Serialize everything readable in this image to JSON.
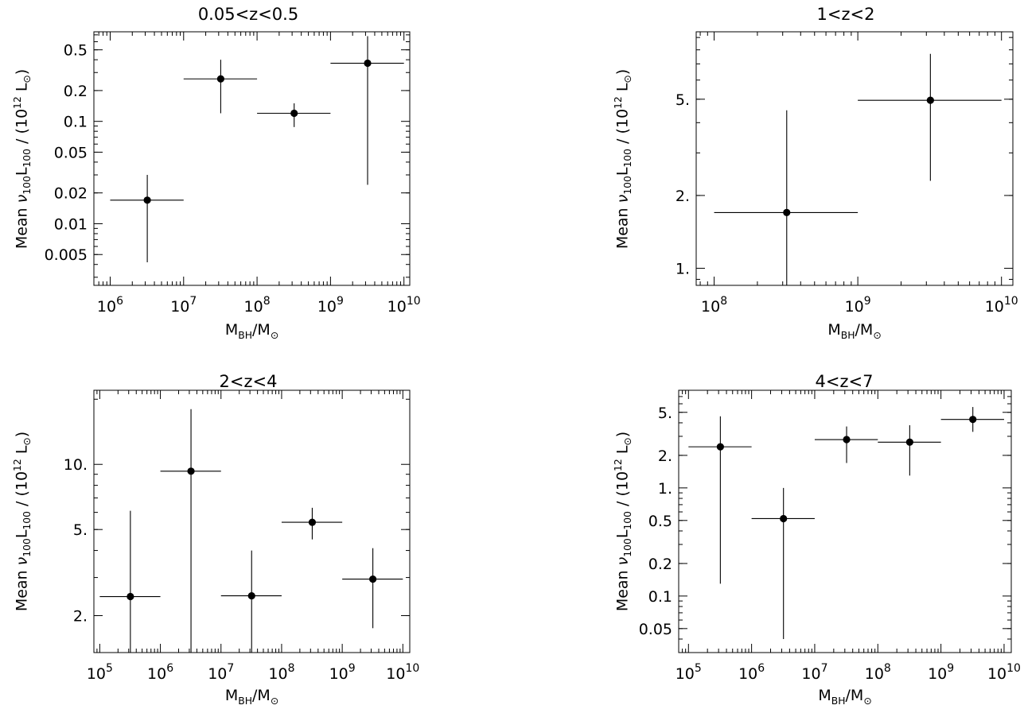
{
  "shared": {
    "ylabel_prefix": "Mean ",
    "ylabel_nu": "ν",
    "ylabel_sub1": "100",
    "ylabel_L": "L",
    "ylabel_sub2": "100",
    "ylabel_mid": " / (10",
    "ylabel_sup": "12",
    "ylabel_end": " L",
    "ylabel_sun": "⊙",
    "ylabel_close": ")",
    "xlabel_M": "M",
    "xlabel_sub": "BH",
    "xlabel_slash": "/M",
    "xlabel_sun": "⊙"
  },
  "chart_data": [
    {
      "type": "scatter",
      "title": "0.05<z<0.5",
      "xlabel": "M_BH/M_⊙",
      "ylabel": "Mean ν100L100 / (10^12 L⊙)",
      "x_scale": "log",
      "y_scale": "log",
      "xlim": [
        600000.0,
        12000000000.0
      ],
      "ylim": [
        0.0025,
        0.75
      ],
      "x_ticks": [
        {
          "v": 1000000.0,
          "b": "10",
          "e": "6"
        },
        {
          "v": 10000000.0,
          "b": "10",
          "e": "7"
        },
        {
          "v": 100000000.0,
          "b": "10",
          "e": "8"
        },
        {
          "v": 1000000000.0,
          "b": "10",
          "e": "9"
        },
        {
          "v": 10000000000.0,
          "b": "10",
          "e": "10"
        }
      ],
      "y_ticks": [
        {
          "v": 0.005,
          "t": "0.005"
        },
        {
          "v": 0.01,
          "t": "0.01"
        },
        {
          "v": 0.02,
          "t": "0.02"
        },
        {
          "v": 0.05,
          "t": "0.05"
        },
        {
          "v": 0.1,
          "t": "0.1"
        },
        {
          "v": 0.2,
          "t": "0.2"
        },
        {
          "v": 0.5,
          "t": "0.5"
        }
      ],
      "points": [
        {
          "x": 3200000.0,
          "y": 0.017,
          "xerr": [
            1000000.0,
            10000000.0
          ],
          "yerr": [
            0.0042,
            0.03
          ]
        },
        {
          "x": 32000000.0,
          "y": 0.26,
          "xerr": [
            10000000.0,
            100000000.0
          ],
          "yerr": [
            0.12,
            0.4
          ]
        },
        {
          "x": 320000000.0,
          "y": 0.12,
          "xerr": [
            100000000.0,
            1000000000.0
          ],
          "yerr": [
            0.088,
            0.15
          ]
        },
        {
          "x": 3200000000.0,
          "y": 0.37,
          "xerr": [
            1000000000.0,
            10000000000.0
          ],
          "yerr": [
            0.024,
            0.68
          ]
        }
      ]
    },
    {
      "type": "scatter",
      "title": "1<z<2",
      "xlabel": "M_BH/M_⊙",
      "ylabel": "Mean ν100L100 / (10^12 L⊙)",
      "x_scale": "log",
      "y_scale": "log",
      "xlim": [
        75000000.0,
        12000000000.0
      ],
      "ylim": [
        0.85,
        9.5
      ],
      "x_ticks": [
        {
          "v": 100000000.0,
          "b": "10",
          "e": "8"
        },
        {
          "v": 1000000000.0,
          "b": "10",
          "e": "9"
        },
        {
          "v": 10000000000.0,
          "b": "10",
          "e": "10"
        }
      ],
      "y_ticks": [
        {
          "v": 1,
          "t": "1."
        },
        {
          "v": 2,
          "t": "2."
        },
        {
          "v": 5,
          "t": "5."
        }
      ],
      "points": [
        {
          "x": 320000000.0,
          "y": 1.7,
          "xerr": [
            100000000.0,
            1000000000.0
          ],
          "yerr": [
            0.85,
            4.5
          ]
        },
        {
          "x": 3200000000.0,
          "y": 4.95,
          "xerr": [
            1000000000.0,
            10000000000.0
          ],
          "yerr": [
            2.3,
            7.7
          ]
        }
      ]
    },
    {
      "type": "scatter",
      "title": "2<z<4",
      "xlabel": "M_BH/M_⊙",
      "ylabel": "Mean ν100L100 / (10^12 L⊙)",
      "x_scale": "log",
      "y_scale": "log",
      "xlim": [
        80000.0,
        13000000000.0
      ],
      "ylim": [
        1.35,
        22.0
      ],
      "x_ticks": [
        {
          "v": 100000.0,
          "b": "10",
          "e": "5"
        },
        {
          "v": 1000000.0,
          "b": "10",
          "e": "6"
        },
        {
          "v": 10000000.0,
          "b": "10",
          "e": "7"
        },
        {
          "v": 100000000.0,
          "b": "10",
          "e": "8"
        },
        {
          "v": 1000000000.0,
          "b": "10",
          "e": "9"
        },
        {
          "v": 10000000000.0,
          "b": "10",
          "e": "10"
        }
      ],
      "y_ticks": [
        {
          "v": 2,
          "t": "2."
        },
        {
          "v": 5,
          "t": "5."
        },
        {
          "v": 10,
          "t": "10."
        }
      ],
      "points": [
        {
          "x": 320000.0,
          "y": 2.45,
          "xerr": [
            100000.0,
            1000000.0
          ],
          "yerr": [
            1.35,
            6.1
          ]
        },
        {
          "x": 3200000.0,
          "y": 9.3,
          "xerr": [
            1000000.0,
            10000000.0
          ],
          "yerr": [
            1.35,
            18.0
          ]
        },
        {
          "x": 32000000.0,
          "y": 2.47,
          "xerr": [
            10000000.0,
            100000000.0
          ],
          "yerr": [
            1.35,
            4.0
          ]
        },
        {
          "x": 320000000.0,
          "y": 5.4,
          "xerr": [
            100000000.0,
            1000000000.0
          ],
          "yerr": [
            4.5,
            6.3
          ]
        },
        {
          "x": 3200000000.0,
          "y": 2.95,
          "xerr": [
            1000000000.0,
            10000000000.0
          ],
          "yerr": [
            1.75,
            4.1
          ]
        }
      ]
    },
    {
      "type": "scatter",
      "title": "4<z<7",
      "xlabel": "M_BH/M_⊙",
      "ylabel": "Mean ν100L100 / (10^12 L⊙)",
      "x_scale": "log",
      "y_scale": "log",
      "xlim": [
        70000.0,
        13000000000.0
      ],
      "ylim": [
        0.03,
        8.0
      ],
      "x_ticks": [
        {
          "v": 100000.0,
          "b": "10",
          "e": "5"
        },
        {
          "v": 1000000.0,
          "b": "10",
          "e": "6"
        },
        {
          "v": 10000000.0,
          "b": "10",
          "e": "7"
        },
        {
          "v": 100000000.0,
          "b": "10",
          "e": "8"
        },
        {
          "v": 1000000000.0,
          "b": "10",
          "e": "9"
        },
        {
          "v": 10000000000.0,
          "b": "10",
          "e": "10"
        }
      ],
      "y_ticks": [
        {
          "v": 0.05,
          "t": "0.05"
        },
        {
          "v": 0.1,
          "t": "0.1"
        },
        {
          "v": 0.2,
          "t": "0.2"
        },
        {
          "v": 0.5,
          "t": "0.5"
        },
        {
          "v": 1,
          "t": "1."
        },
        {
          "v": 2,
          "t": "2."
        },
        {
          "v": 5,
          "t": "5."
        }
      ],
      "points": [
        {
          "x": 320000.0,
          "y": 2.4,
          "xerr": [
            100000.0,
            1000000.0
          ],
          "yerr": [
            0.13,
            4.6
          ]
        },
        {
          "x": 3200000.0,
          "y": 0.52,
          "xerr": [
            1000000.0,
            10000000.0
          ],
          "yerr": [
            0.04,
            1.0
          ]
        },
        {
          "x": 32000000.0,
          "y": 2.8,
          "xerr": [
            10000000.0,
            100000000.0
          ],
          "yerr": [
            1.7,
            3.7
          ]
        },
        {
          "x": 320000000.0,
          "y": 2.65,
          "xerr": [
            100000000.0,
            1000000000.0
          ],
          "yerr": [
            1.3,
            3.8
          ]
        },
        {
          "x": 3200000000.0,
          "y": 4.3,
          "xerr": [
            1000000000.0,
            10000000000.0
          ],
          "yerr": [
            3.3,
            5.6
          ]
        }
      ]
    }
  ]
}
